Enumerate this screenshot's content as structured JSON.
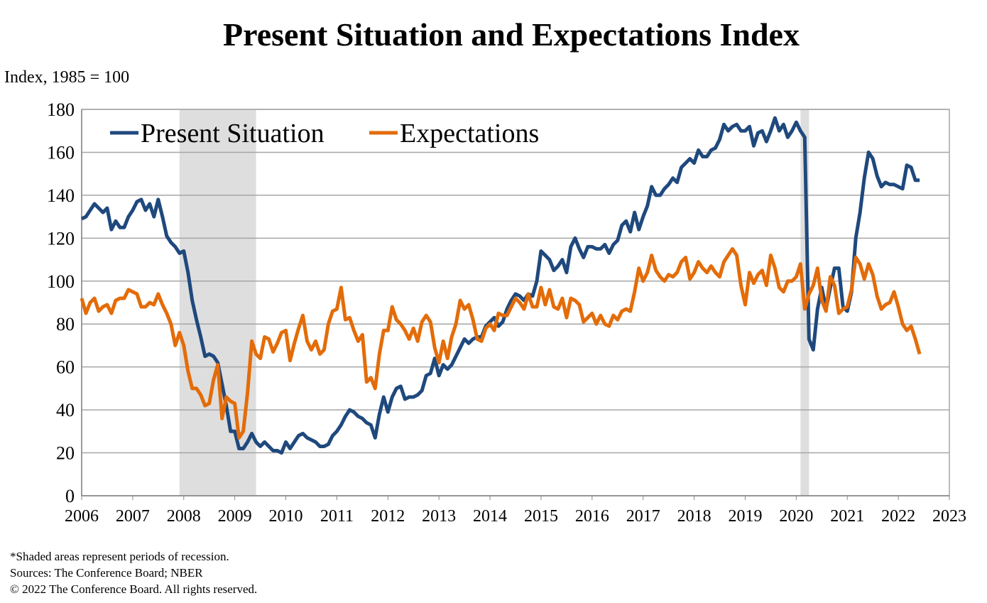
{
  "chart_data": {
    "type": "line",
    "title": "Present Situation and Expectations Index",
    "ylabel": "Index, 1985 = 100",
    "ylim": [
      0,
      180
    ],
    "yticks": [
      0,
      20,
      40,
      60,
      80,
      100,
      120,
      140,
      160,
      180
    ],
    "xlim": [
      2006,
      2023
    ],
    "xticks": [
      "2006",
      "2007",
      "2008",
      "2009",
      "2010",
      "2011",
      "2012",
      "2013",
      "2014",
      "2015",
      "2016",
      "2017",
      "2018",
      "2019",
      "2020",
      "2021",
      "2022",
      "2023"
    ],
    "x_start": "2006-01",
    "x_end": "2022-06",
    "frequency": "monthly",
    "grid": true,
    "legend_position": "top-left",
    "recessions": [
      [
        "2007-12",
        "2009-06"
      ],
      [
        "2020-02",
        "2020-04"
      ]
    ],
    "series": [
      {
        "name": "Present Situation",
        "color": "#1F497D",
        "values": [
          129,
          130,
          133,
          136,
          134,
          132,
          134,
          124,
          128,
          125,
          125,
          130,
          133,
          137,
          138,
          133,
          136,
          130,
          138,
          130,
          121,
          118,
          116,
          113,
          114,
          104,
          91,
          82,
          74,
          65,
          66,
          65,
          62,
          52,
          42,
          30,
          30,
          22,
          22,
          25,
          29,
          25,
          23,
          25,
          23,
          21,
          21,
          20,
          25,
          22,
          25,
          28,
          29,
          27,
          26,
          25,
          23,
          23,
          24,
          28,
          30,
          33,
          37,
          40,
          39,
          37,
          36,
          34,
          33,
          27,
          38,
          46,
          39,
          46,
          50,
          51,
          45,
          46,
          46,
          47,
          49,
          56,
          57,
          64,
          56,
          61,
          59,
          61,
          65,
          69,
          73,
          71,
          73,
          74,
          74,
          79,
          81,
          83,
          79,
          81,
          87,
          91,
          94,
          93,
          91,
          94,
          93,
          100,
          114,
          112,
          110,
          105,
          107,
          110,
          104,
          116,
          120,
          115,
          111,
          116,
          116,
          115,
          115,
          117,
          113,
          117,
          119,
          126,
          128,
          123,
          132,
          124,
          130,
          135,
          144,
          140,
          140,
          143,
          145,
          148,
          146,
          153,
          155,
          157,
          155,
          161,
          158,
          158,
          161,
          162,
          166,
          173,
          170,
          172,
          173,
          170,
          170,
          172,
          163,
          169,
          170,
          165,
          170,
          176,
          170,
          173,
          167,
          170,
          174,
          170,
          167,
          73,
          68,
          87,
          97,
          87,
          97,
          106,
          106,
          88,
          86,
          95,
          120,
          132,
          148,
          160,
          157,
          149,
          144,
          146,
          145,
          145,
          144,
          143,
          154,
          153,
          147,
          147
        ]
      },
      {
        "name": "Expectations",
        "color": "#E36C09",
        "values": [
          92,
          85,
          90,
          92,
          86,
          88,
          89,
          85,
          91,
          92,
          92,
          96,
          95,
          94,
          88,
          88,
          90,
          89,
          94,
          89,
          85,
          80,
          70,
          76,
          70,
          58,
          50,
          50,
          47,
          42,
          43,
          54,
          61,
          36,
          46,
          44,
          43,
          27,
          30,
          48,
          72,
          66,
          64,
          74,
          73,
          67,
          71,
          76,
          77,
          63,
          71,
          78,
          84,
          72,
          68,
          72,
          66,
          68,
          80,
          86,
          87,
          97,
          82,
          83,
          77,
          72,
          75,
          53,
          55,
          50,
          66,
          77,
          77,
          88,
          82,
          80,
          77,
          73,
          78,
          72,
          81,
          84,
          81,
          69,
          62,
          72,
          64,
          74,
          80,
          91,
          87,
          89,
          82,
          73,
          72,
          78,
          80,
          77,
          85,
          84,
          84,
          88,
          92,
          90,
          87,
          94,
          88,
          88,
          97,
          89,
          96,
          88,
          87,
          92,
          83,
          92,
          91,
          89,
          81,
          83,
          85,
          80,
          84,
          80,
          79,
          84,
          82,
          86,
          87,
          86,
          95,
          106,
          100,
          104,
          112,
          105,
          102,
          100,
          103,
          102,
          104,
          109,
          111,
          101,
          104,
          109,
          106,
          104,
          107,
          104,
          102,
          109,
          112,
          115,
          112,
          98,
          89,
          104,
          99,
          103,
          105,
          98,
          112,
          106,
          97,
          95,
          100,
          100,
          102,
          108,
          87,
          94,
          98,
          106,
          91,
          86,
          102,
          98,
          85,
          87,
          88,
          96,
          111,
          108,
          101,
          108,
          103,
          93,
          87,
          89,
          90,
          95,
          88,
          80,
          77,
          79,
          73,
          66
        ]
      }
    ]
  },
  "footnotes": {
    "note1": "*Shaded areas represent periods of recession.",
    "note2": "Sources: The Conference Board; NBER",
    "note3": "© 2022 The Conference Board. All rights reserved."
  }
}
